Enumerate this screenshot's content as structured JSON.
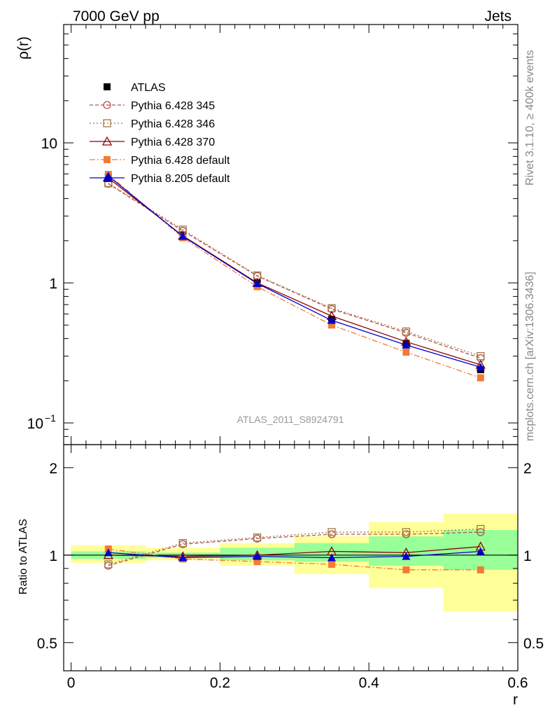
{
  "chart_data": {
    "type": "line",
    "title_left": "7000 GeV pp",
    "title_right": "Jets",
    "analysis_label": "ATLAS_2011_S8924791",
    "side_label_top": "Rivet 3.1.10, ≥ 400k events",
    "side_label_bottom": "mcplots.cern.ch [arXiv:1306.3436]",
    "xlabel": "r",
    "ylabel_main": "ρ(r)",
    "ylabel_ratio": "Ratio to ATLAS",
    "xlim": [
      -0.01,
      0.6
    ],
    "ylim_main": [
      0.07,
      70
    ],
    "ylim_ratio": [
      0.4,
      2.4
    ],
    "x_ticks": [
      0,
      0.2,
      0.4,
      0.6
    ],
    "x_tick_labels": [
      "0",
      "0.2",
      "0.4",
      "0.6"
    ],
    "main_y_ticks": [
      10,
      1
    ],
    "main_y_tick_labels": [
      "10",
      "1"
    ],
    "main_y_tick_low": {
      "base": "10",
      "exp": "−1"
    },
    "ratio_y_ticks": [
      2,
      1,
      0.5
    ],
    "ratio_y_tick_labels": [
      "2",
      "1",
      "0.5"
    ],
    "x": [
      0.05,
      0.15,
      0.25,
      0.35,
      0.45,
      0.55
    ],
    "bin_edges": [
      0,
      0.1,
      0.2,
      0.3,
      0.4,
      0.5,
      0.6
    ],
    "band_inner": [
      [
        0.97,
        1.03
      ],
      [
        0.98,
        1.02
      ],
      [
        0.96,
        1.06
      ],
      [
        0.95,
        1.1
      ],
      [
        0.92,
        1.16
      ],
      [
        0.89,
        1.22
      ]
    ],
    "band_outer": [
      [
        0.94,
        1.08
      ],
      [
        0.96,
        1.06
      ],
      [
        0.92,
        1.1
      ],
      [
        0.86,
        1.16
      ],
      [
        0.77,
        1.3
      ],
      [
        0.64,
        1.39
      ]
    ],
    "legend": [
      "ATLAS",
      "Pythia 6.428 345",
      "Pythia 6.428 346",
      "Pythia 6.428 370",
      "Pythia 6.428 default",
      "Pythia 8.205 default"
    ],
    "series": [
      {
        "name": "ATLAS",
        "color": "#000000",
        "marker": "square-filled",
        "dash": "none",
        "values": [
          5.7,
          2.2,
          1.0,
          0.55,
          0.37,
          0.24
        ],
        "ratio": [
          1,
          1,
          1,
          1,
          1,
          1
        ]
      },
      {
        "name": "Pythia 6.428 345",
        "color": "#B35353",
        "marker": "circle-open",
        "dash": "5,3",
        "values": [
          5.1,
          2.35,
          1.12,
          0.65,
          0.44,
          0.29
        ],
        "ratio": [
          0.92,
          1.09,
          1.14,
          1.18,
          1.18,
          1.2
        ]
      },
      {
        "name": "Pythia 6.428 346",
        "color": "#A07640",
        "marker": "square-open",
        "dash": "2,3",
        "values": [
          5.15,
          2.4,
          1.13,
          0.66,
          0.45,
          0.3
        ],
        "ratio": [
          0.93,
          1.1,
          1.15,
          1.2,
          1.2,
          1.23
        ]
      },
      {
        "name": "Pythia 6.428 370",
        "color": "#8B0000",
        "marker": "triangle-open",
        "dash": "none",
        "values": [
          5.6,
          2.17,
          1.0,
          0.58,
          0.38,
          0.26
        ],
        "ratio": [
          1.0,
          0.99,
          1.0,
          1.03,
          1.02,
          1.07
        ]
      },
      {
        "name": "Pythia 6.428 default",
        "color": "#F57A35",
        "marker": "square-filled",
        "dash": "8,3,2,3",
        "values": [
          5.95,
          2.1,
          0.94,
          0.5,
          0.32,
          0.21
        ],
        "ratio": [
          1.05,
          0.97,
          0.95,
          0.93,
          0.89,
          0.89
        ]
      },
      {
        "name": "Pythia 8.205 default",
        "color": "#0000CC",
        "marker": "triangle-filled",
        "dash": "none",
        "values": [
          5.8,
          2.15,
          0.99,
          0.54,
          0.36,
          0.25
        ],
        "ratio": [
          1.02,
          0.98,
          0.99,
          0.98,
          0.99,
          1.03
        ]
      }
    ]
  }
}
